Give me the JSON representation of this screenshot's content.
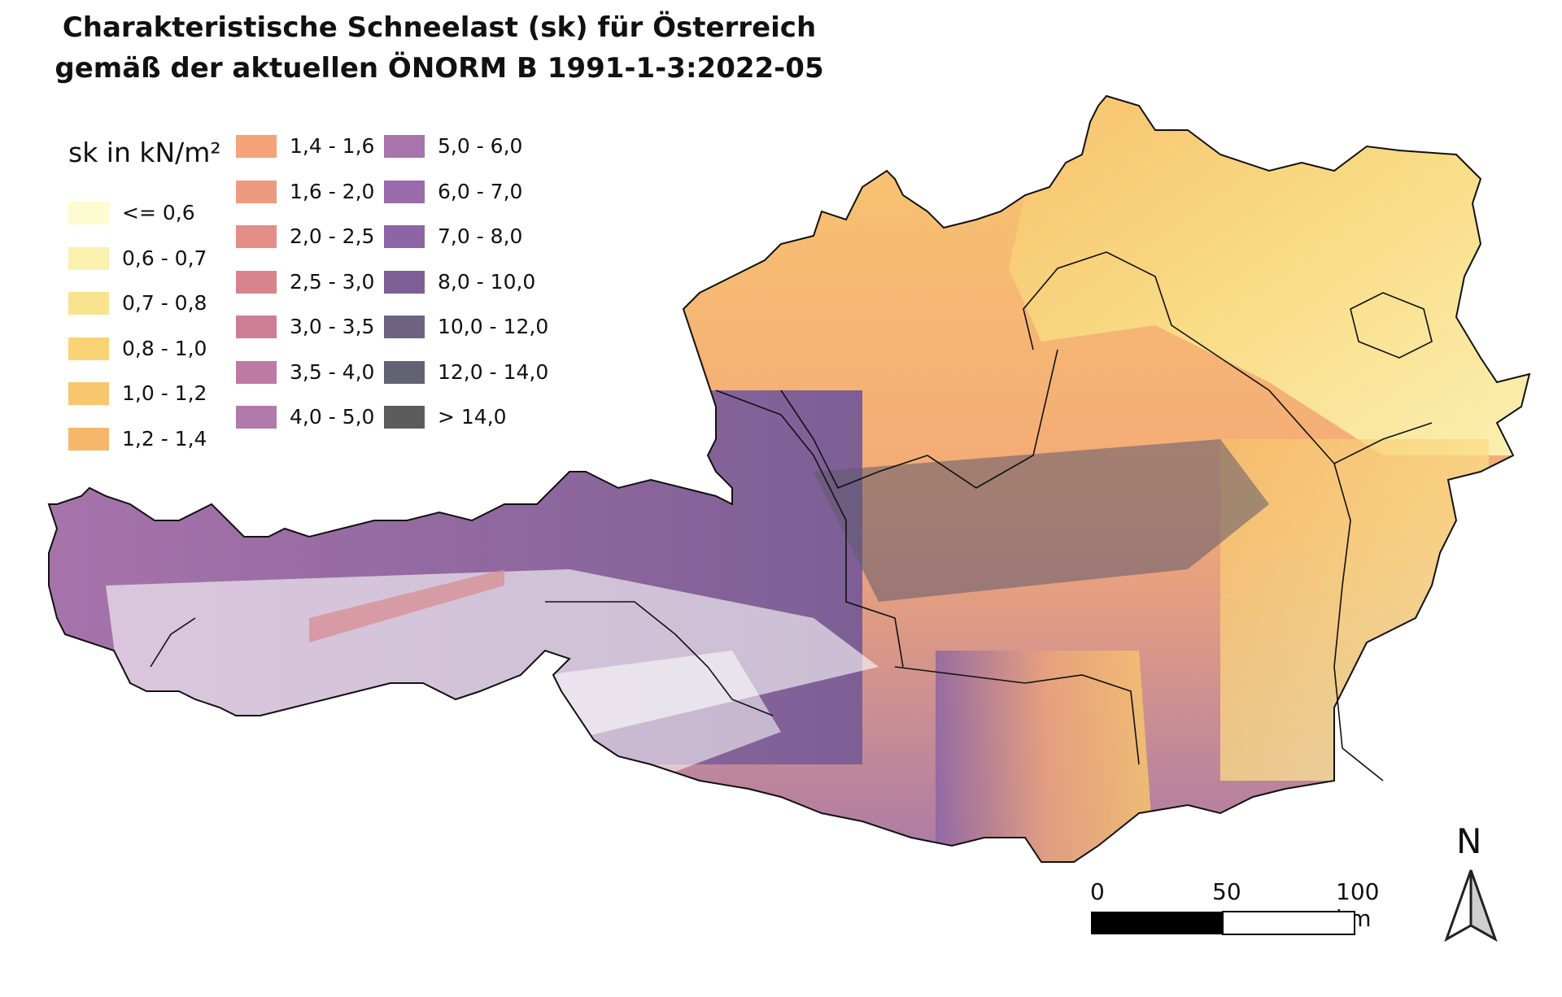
{
  "title_line1": "Charakteristische Schneelast (sk) für Österreich",
  "title_line2": "gemäß der aktuellen ÖNORM B 1991-1-3:2022-05",
  "legend": {
    "title": "sk in kN/m²",
    "items": [
      {
        "label": "<= 0,6",
        "color": "#fdfcd0"
      },
      {
        "label": "0,6 - 0,7",
        "color": "#faf1ae"
      },
      {
        "label": "0,7 - 0,8",
        "color": "#f9e38e"
      },
      {
        "label": "0,8 - 1,0",
        "color": "#f9d474"
      },
      {
        "label": "1,0 - 1,2",
        "color": "#f8c66d"
      },
      {
        "label": "1,2 - 1,4",
        "color": "#f6b66c"
      },
      {
        "label": "1,4 - 1,6",
        "color": "#f4a478"
      },
      {
        "label": "1,6 - 2,0",
        "color": "#ec9b80"
      },
      {
        "label": "2,0 - 2,5",
        "color": "#e38d88"
      },
      {
        "label": "2,5 - 3,0",
        "color": "#d9838e"
      },
      {
        "label": "3,0 - 3,5",
        "color": "#cc7e97"
      },
      {
        "label": "3,5 - 4,0",
        "color": "#bd7aa2"
      },
      {
        "label": "4,0 - 5,0",
        "color": "#b279ab"
      },
      {
        "label": "5,0 - 6,0",
        "color": "#a774ab"
      },
      {
        "label": "6,0 - 7,0",
        "color": "#9a6aaa"
      },
      {
        "label": "7,0 - 8,0",
        "color": "#8d65a4"
      },
      {
        "label": "8,0 - 10,0",
        "color": "#7d5f95"
      },
      {
        "label": "10,0 - 12,0",
        "color": "#6e6482"
      },
      {
        "label": "12,0 - 14,0",
        "color": "#636272"
      },
      {
        "label": "> 14,0",
        "color": "#5c5c5f"
      }
    ]
  },
  "scale_bar": {
    "ticks": [
      "0",
      "50",
      "100 km"
    ]
  },
  "north_arrow": {
    "label": "N",
    "icon": "north-arrow-icon"
  }
}
